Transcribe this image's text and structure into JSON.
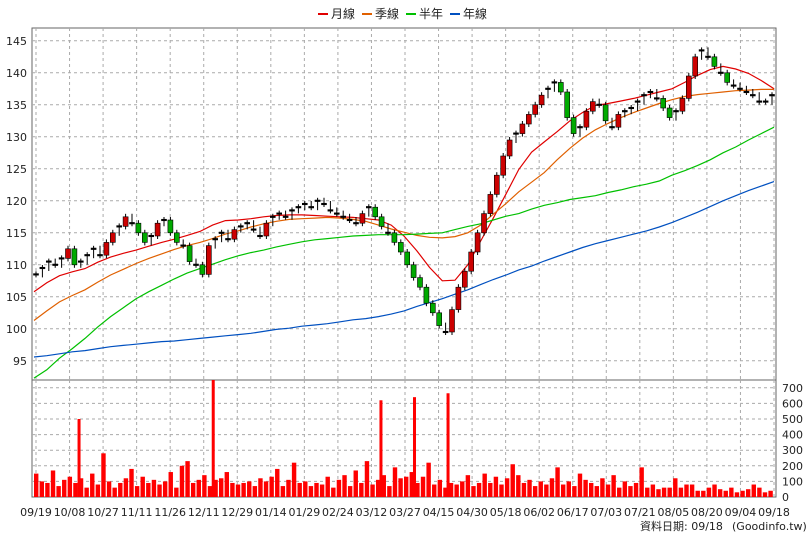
{
  "chart_data": [
    {
      "type": "line",
      "legend": {
        "placement": "top-center",
        "items": [
          {
            "name": "月線",
            "color": "#e00000"
          },
          {
            "name": "季線",
            "color": "#e06000"
          },
          {
            "name": "半年",
            "color": "#00c000"
          },
          {
            "name": "年線",
            "color": "#0050c0"
          }
        ]
      },
      "ylim": [
        92,
        147
      ],
      "yticks": [
        95,
        100,
        105,
        110,
        115,
        120,
        125,
        130,
        135,
        140,
        145
      ],
      "grid": true,
      "xticks": [
        "09/19",
        "10/08",
        "10/27",
        "11/11",
        "11/26",
        "12/11",
        "12/29",
        "01/14",
        "01/29",
        "02/24",
        "03/12",
        "03/27",
        "04/15",
        "04/30",
        "05/18",
        "06/02",
        "06/17",
        "07/03",
        "07/21",
        "08/05",
        "08/20",
        "09/04",
        "09/18"
      ],
      "candles": [
        108.5,
        109.5,
        110.5,
        110.0,
        111.0,
        112.5,
        110.0,
        110.5,
        111.5,
        112.5,
        111.5,
        113.5,
        115.0,
        116.0,
        117.5,
        116.5,
        115.0,
        113.5,
        114.5,
        116.5,
        117.0,
        115.0,
        113.5,
        113.0,
        110.5,
        110.0,
        108.5,
        113.0,
        114.0,
        115.0,
        114.0,
        115.5,
        116.0,
        116.5,
        115.5,
        114.5,
        116.5,
        117.5,
        118.0,
        117.5,
        118.5,
        119.0,
        119.5,
        119.0,
        120.0,
        119.5,
        118.5,
        118.0,
        117.5,
        117.0,
        116.5,
        118.0,
        119.0,
        117.5,
        116.0,
        115.0,
        113.5,
        112.0,
        110.0,
        108.0,
        106.5,
        104.0,
        102.5,
        100.5,
        99.5,
        103.0,
        106.5,
        109.0,
        112.0,
        115.0,
        118.0,
        121.0,
        124.0,
        127.0,
        129.5,
        130.5,
        132.0,
        133.5,
        135.0,
        136.5,
        137.5,
        138.5,
        137.0,
        133.0,
        130.5,
        131.5,
        134.0,
        135.5,
        135.0,
        132.5,
        131.5,
        133.5,
        134.0,
        134.5,
        135.5,
        136.5,
        137.0,
        136.0,
        134.5,
        133.0,
        134.0,
        136.0,
        139.5,
        142.5,
        143.5,
        142.5,
        141.0,
        140.0,
        138.5,
        138.0,
        137.5,
        137.0,
        136.5,
        135.5,
        135.5,
        136.5
      ],
      "series": [
        {
          "name": "月線",
          "values": [
            105.8,
            107.2,
            108.3,
            108.9,
            109.4,
            110.4,
            111.2,
            111.8,
            112.3,
            112.9,
            113.5,
            114.0,
            114.6,
            115.2,
            116.2,
            116.9,
            117.0,
            117.2,
            117.5,
            117.7,
            117.8,
            117.8,
            117.7,
            117.6,
            117.5,
            117.4,
            117.2,
            117.0,
            116.2,
            114.5,
            112.2,
            109.6,
            107.5,
            107.6,
            110.0,
            113.7,
            117.3,
            121.1,
            124.9,
            127.6,
            129.2,
            130.8,
            132.5,
            133.8,
            134.9,
            135.2,
            135.6,
            136.0,
            136.5,
            137.0,
            137.5,
            138.5,
            139.6,
            140.5,
            141.0,
            140.6,
            139.9,
            138.8,
            137.5
          ]
        },
        {
          "name": "季線",
          "values": [
            101.3,
            102.8,
            104.2,
            105.2,
            106.1,
            107.3,
            108.4,
            109.3,
            110.2,
            111.0,
            111.7,
            112.4,
            113.0,
            113.5,
            114.1,
            114.8,
            115.3,
            115.9,
            116.4,
            116.8,
            117.1,
            117.2,
            117.3,
            117.4,
            117.3,
            117.1,
            116.8,
            116.2,
            115.6,
            115.1,
            114.6,
            114.3,
            114.2,
            114.4,
            115.0,
            116.2,
            117.9,
            119.6,
            121.4,
            122.9,
            124.4,
            126.4,
            128.2,
            129.8,
            131.1,
            132.1,
            133.0,
            133.8,
            134.5,
            135.2,
            135.8,
            136.3,
            136.6,
            136.8,
            137.0,
            137.2,
            137.3,
            137.4,
            137.4
          ]
        },
        {
          "name": "半年",
          "values": [
            92.3,
            93.6,
            95.4,
            96.9,
            98.5,
            100.3,
            101.9,
            103.3,
            104.7,
            105.8,
            106.8,
            107.8,
            108.7,
            109.4,
            110.1,
            110.8,
            111.4,
            111.9,
            112.3,
            112.8,
            113.2,
            113.6,
            113.9,
            114.1,
            114.3,
            114.5,
            114.6,
            114.7,
            114.7,
            114.7,
            114.8,
            114.9,
            115.0,
            115.5,
            116.0,
            116.4,
            117.0,
            117.6,
            118.0,
            118.7,
            119.3,
            119.7,
            120.2,
            120.5,
            120.8,
            121.3,
            121.7,
            122.2,
            122.6,
            123.1,
            124.0,
            124.7,
            125.5,
            126.4,
            127.5,
            128.4,
            129.5,
            130.5,
            131.5
          ]
        },
        {
          "name": "年線",
          "values": [
            95.6,
            95.8,
            96.1,
            96.4,
            96.6,
            96.9,
            97.2,
            97.4,
            97.6,
            97.8,
            98.0,
            98.1,
            98.3,
            98.5,
            98.7,
            98.9,
            99.1,
            99.3,
            99.6,
            99.9,
            100.1,
            100.4,
            100.6,
            100.8,
            101.1,
            101.4,
            101.6,
            101.9,
            102.3,
            102.8,
            103.5,
            104.1,
            104.7,
            105.4,
            106.1,
            106.9,
            107.7,
            108.4,
            109.2,
            109.8,
            110.6,
            111.3,
            112.0,
            112.7,
            113.3,
            113.8,
            114.3,
            114.8,
            115.3,
            115.9,
            116.6,
            117.4,
            118.2,
            119.1,
            120.0,
            120.8,
            121.6,
            122.3,
            123.0
          ]
        }
      ]
    },
    {
      "type": "bar",
      "name": "volume",
      "color": "#ff0000",
      "ylim": [
        0,
        750
      ],
      "yticks": [
        0,
        100,
        200,
        300,
        400,
        500,
        600,
        700
      ],
      "spikes": [
        {
          "x": "10/08",
          "y": 500
        },
        {
          "x": "12/11",
          "y": 800
        },
        {
          "x": "03/12",
          "y": 620
        },
        {
          "x": "03/27",
          "y": 640
        },
        {
          "x": "04/15",
          "y": 665
        }
      ],
      "values": [
        150,
        100,
        90,
        170,
        70,
        110,
        130,
        90,
        120,
        60,
        150,
        80,
        280,
        100,
        60,
        90,
        120,
        180,
        70,
        130,
        90,
        110,
        80,
        100,
        160,
        60,
        200,
        230,
        90,
        110,
        140,
        70,
        110,
        120,
        160,
        90,
        80,
        90,
        100,
        70,
        120,
        100,
        130,
        180,
        70,
        110,
        220,
        90,
        100,
        70,
        90,
        80,
        130,
        60,
        110,
        140,
        70,
        170,
        90,
        230,
        80,
        110,
        140,
        70,
        190,
        120,
        130,
        160,
        90,
        130,
        220,
        80,
        110,
        60,
        90,
        80,
        100,
        140,
        70,
        90,
        150,
        90,
        130,
        80,
        120,
        210,
        140,
        90,
        110,
        70,
        100,
        80,
        120,
        190,
        80,
        100,
        70,
        150,
        110,
        90,
        70,
        120,
        80,
        140,
        60,
        100,
        70,
        90,
        190,
        60,
        80,
        50,
        60,
        60,
        120,
        60,
        80,
        80,
        40,
        40,
        60,
        80,
        50,
        40,
        60,
        30,
        40,
        50,
        80,
        60,
        30,
        40
      ]
    }
  ],
  "footer": {
    "date_label": "資料日期: 09/18",
    "source": "(Goodinfo.tw)"
  }
}
